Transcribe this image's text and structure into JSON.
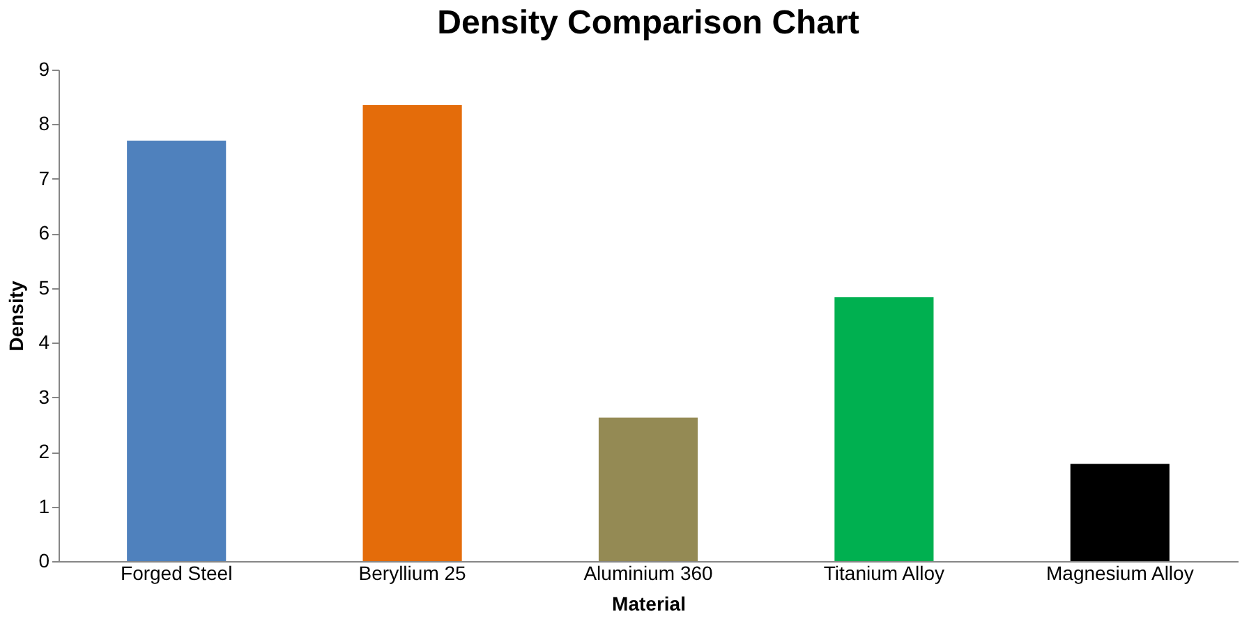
{
  "chart_data": {
    "type": "bar",
    "title": "Density Comparison Chart",
    "xlabel": "Material",
    "ylabel": "Density",
    "categories": [
      "Forged Steel",
      "Beryllium 25",
      "Aluminium 360",
      "Titanium Alloy",
      "Magnesium Alloy"
    ],
    "values": [
      7.7,
      8.35,
      2.63,
      4.83,
      1.78
    ],
    "colors": [
      "#4f81bd",
      "#e46c0a",
      "#948a54",
      "#00b050",
      "#000000"
    ],
    "ylim": [
      0,
      9
    ],
    "yticks": [
      0,
      1,
      2,
      3,
      4,
      5,
      6,
      7,
      8,
      9
    ],
    "grid": false,
    "legend": false
  }
}
